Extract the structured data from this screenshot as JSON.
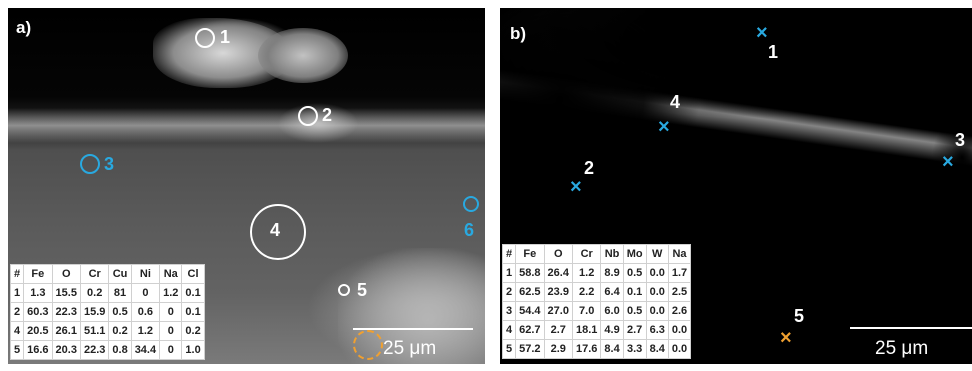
{
  "panel_a": {
    "letter": "a)",
    "markers": [
      "1",
      "2",
      "3",
      "4",
      "5",
      "6"
    ],
    "table": {
      "headers": [
        "#",
        "Fe",
        "O",
        "Cr",
        "Cu",
        "Ni",
        "Na",
        "Cl"
      ],
      "rows": [
        [
          "1",
          "1.3",
          "15.5",
          "0.2",
          "81",
          "0",
          "1.2",
          "0.1"
        ],
        [
          "2",
          "60.3",
          "22.3",
          "15.9",
          "0.5",
          "0.6",
          "0",
          "0.1"
        ],
        [
          "4",
          "20.5",
          "26.1",
          "51.1",
          "0.2",
          "1.2",
          "0",
          "0.2"
        ],
        [
          "5",
          "16.6",
          "20.3",
          "22.3",
          "0.8",
          "34.4",
          "0",
          "1.0"
        ]
      ]
    },
    "scale": "25 μm"
  },
  "panel_b": {
    "letter": "b)",
    "markers": [
      "1",
      "2",
      "3",
      "4",
      "5"
    ],
    "cross_glyph": "×",
    "table": {
      "headers": [
        "#",
        "Fe",
        "O",
        "Cr",
        "Nb",
        "Mo",
        "W",
        "Na"
      ],
      "rows": [
        [
          "1",
          "58.8",
          "26.4",
          "1.2",
          "8.9",
          "0.5",
          "0.0",
          "1.7"
        ],
        [
          "2",
          "62.5",
          "23.9",
          "2.2",
          "6.4",
          "0.1",
          "0.0",
          "2.5"
        ],
        [
          "3",
          "54.4",
          "27.0",
          "7.0",
          "6.0",
          "0.5",
          "0.0",
          "2.6"
        ],
        [
          "4",
          "62.7",
          "2.7",
          "18.1",
          "4.9",
          "2.7",
          "6.3",
          "0.0"
        ],
        [
          "5",
          "57.2",
          "2.9",
          "17.6",
          "8.4",
          "3.3",
          "8.4",
          "0.0"
        ]
      ]
    },
    "scale": "25 μm"
  },
  "colors": {
    "white_marker": "#ffffff",
    "cyan_marker": "#29a9e0",
    "orange_marker": "#f0a030"
  }
}
